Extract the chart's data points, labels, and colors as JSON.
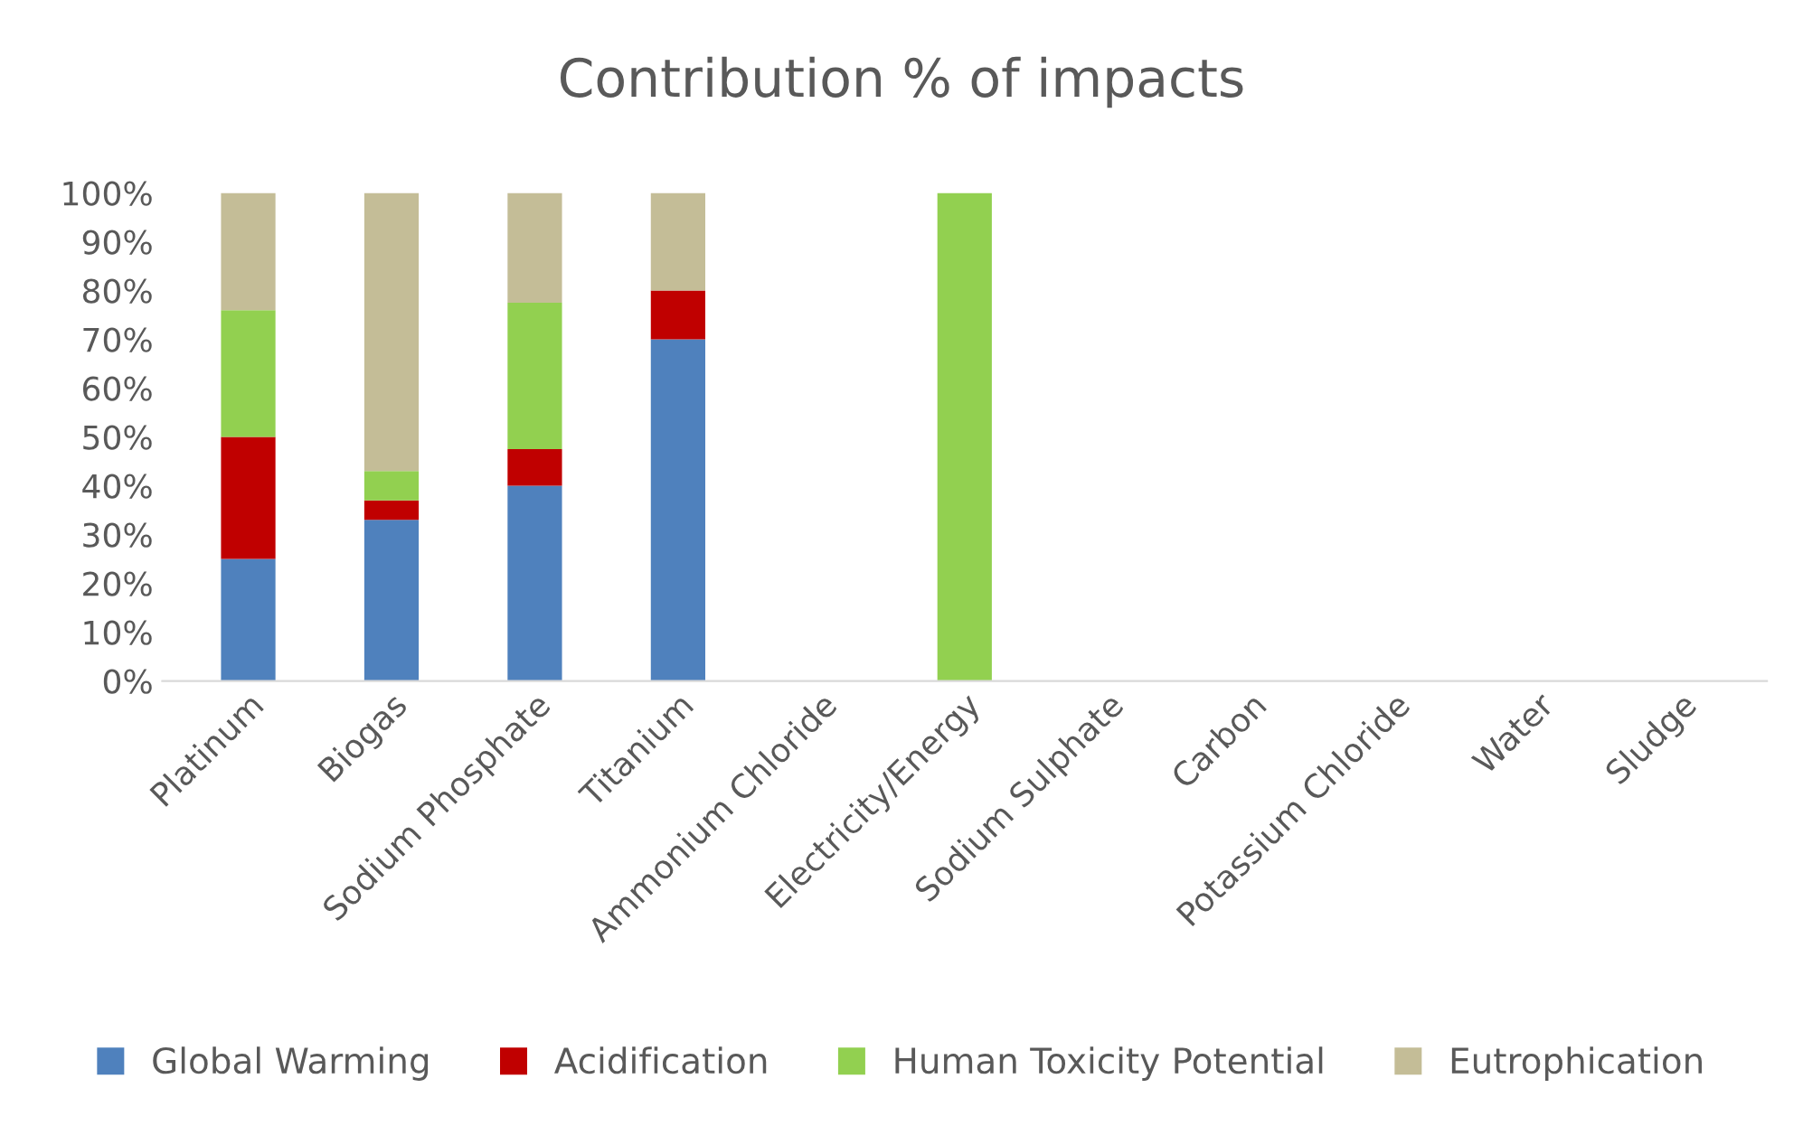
{
  "chart_data": {
    "type": "bar",
    "stacked": true,
    "title": "Contribution % of impacts",
    "categories": [
      "Platinum",
      "Biogas",
      "Sodium Phosphate",
      "Titanium",
      "Ammonium Chloride",
      "Electricity/Energy",
      "Sodium Sulphate",
      "Carbon",
      "Potassium Chloride",
      "Water",
      "Sludge"
    ],
    "series": [
      {
        "name": "Global Warming",
        "color": "#4f81bd",
        "values": [
          25,
          33,
          40,
          70,
          null,
          null,
          null,
          null,
          null,
          null,
          null
        ]
      },
      {
        "name": "Acidification",
        "color": "#c00000",
        "values": [
          25,
          4,
          7.5,
          10,
          null,
          null,
          null,
          null,
          null,
          null,
          null
        ]
      },
      {
        "name": "Human Toxicity Potential",
        "color": "#92d050",
        "values": [
          26,
          6,
          30,
          null,
          null,
          100,
          null,
          null,
          null,
          null,
          null
        ]
      },
      {
        "name": "Eutrophication",
        "color": "#c4bd97",
        "values": [
          24,
          57,
          22.5,
          20,
          null,
          null,
          null,
          null,
          null,
          null,
          null
        ]
      }
    ],
    "ylim": [
      0,
      100
    ],
    "yticks": [
      {
        "value": 0,
        "label": "0%"
      },
      {
        "value": 10,
        "label": "10%"
      },
      {
        "value": 20,
        "label": "20%"
      },
      {
        "value": 30,
        "label": "30%"
      },
      {
        "value": 40,
        "label": "40%"
      },
      {
        "value": 50,
        "label": "50%"
      },
      {
        "value": 60,
        "label": "60%"
      },
      {
        "value": 70,
        "label": "70%"
      },
      {
        "value": 80,
        "label": "80%"
      },
      {
        "value": 90,
        "label": "90%"
      },
      {
        "value": 100,
        "label": "100%"
      }
    ],
    "grid": false,
    "legend": "bottom"
  }
}
